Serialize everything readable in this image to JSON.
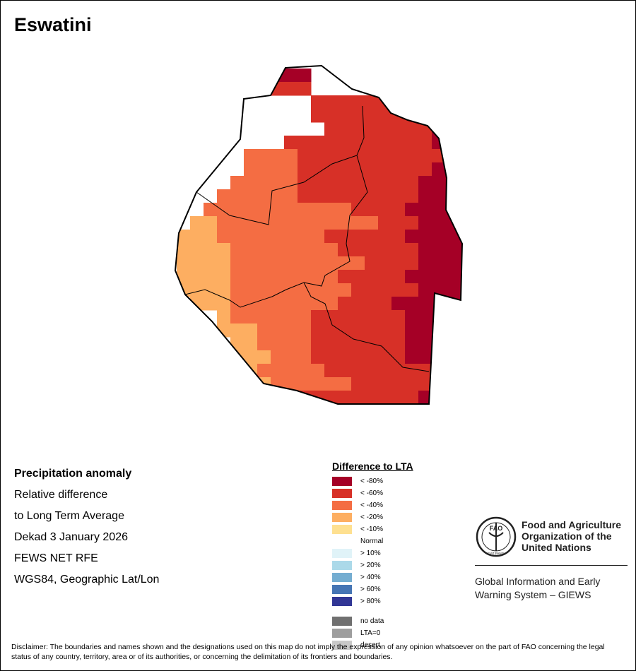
{
  "title": "Eswatini",
  "info": {
    "heading": "Precipitation anomaly",
    "line1": "Relative difference",
    "line2": "to Long Term Average",
    "line3": "Dekad 3 January 2026",
    "line4": "FEWS NET RFE",
    "line5": "WGS84, Geographic Lat/Lon"
  },
  "legend": {
    "title": "Difference to LTA",
    "items": [
      {
        "label": "< -80%",
        "color": "#A50026"
      },
      {
        "label": "< -60%",
        "color": "#D73027"
      },
      {
        "label": "< -40%",
        "color": "#F46D43"
      },
      {
        "label": "< -20%",
        "color": "#FDAE61"
      },
      {
        "label": "< -10%",
        "color": "#FEE090"
      },
      {
        "label": "Normal",
        "color": ""
      },
      {
        "label": "> 10%",
        "color": "#E0F3F8"
      },
      {
        "label": "> 20%",
        "color": "#ABD9E9"
      },
      {
        "label": "> 40%",
        "color": "#74ADD1"
      },
      {
        "label": "> 60%",
        "color": "#4575B4"
      },
      {
        "label": "> 80%",
        "color": "#313695"
      }
    ],
    "extra": [
      {
        "label": "no data",
        "color": "#707070"
      },
      {
        "label": "LTA=0",
        "color": "#9E9E9E"
      },
      {
        "label": "desert",
        "color": "#C8C8C8"
      }
    ]
  },
  "logo": {
    "line1": "Food and Agriculture",
    "line2": "Organization of the",
    "line3": "United Nations",
    "emblem_text": "FAO",
    "motto": "FIAT PANIS",
    "giews_line1": "Global Information and Early",
    "giews_line2": "Warning System – GIEWS"
  },
  "disclaimer": "Disclaimer: The boundaries and names shown and the designations used on this map do not imply the expression of any opinion whatsoever on the part of FAO concerning the legal status of any country, territory, area or of its authorities, or concerning the delimitation of its frontiers and boundaries.",
  "map": {
    "region": "Eswatini",
    "colors": {
      "c5": "#A50026",
      "c4": "#D73027",
      "c3": "#F46D43",
      "c2": "#FDAE61"
    }
  }
}
